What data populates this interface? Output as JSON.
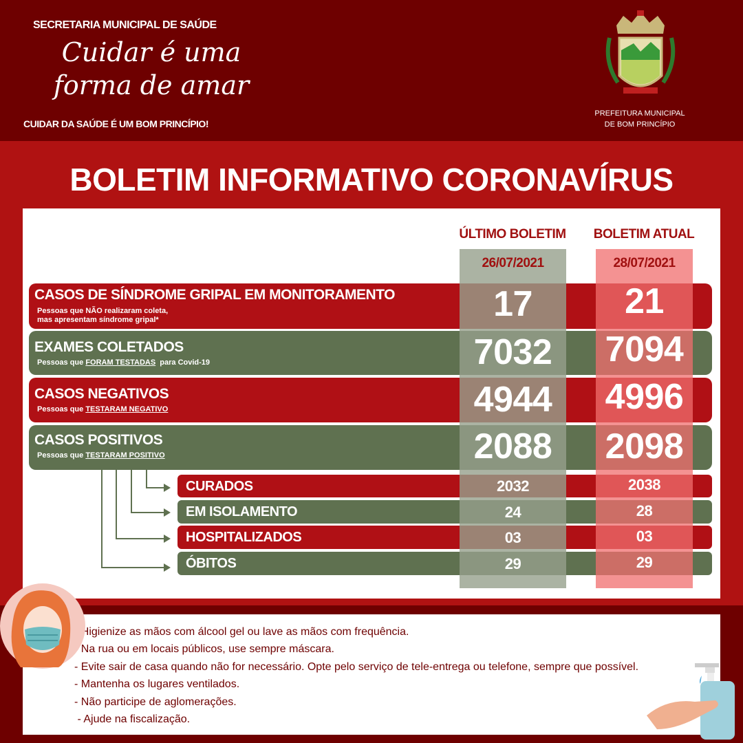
{
  "header": {
    "secretaria": "SECRETARIA MUNICIPAL DE SAÚDE",
    "slogan_line1": "Cuidar é uma",
    "slogan_line2": "forma de amar",
    "tagline": "CUIDAR DA SAÚDE É UM BOM PRINCÍPIO!",
    "prefeitura_line1": "PREFEITURA MUNICIPAL",
    "prefeitura_line2": "DE BOM PRINCÍPIO",
    "logo": "bom-principio-coat-of-arms"
  },
  "title": "BOLETIM INFORMATIVO CORONAVÍRUS",
  "columns": [
    {
      "label": "ÚLTIMO BOLETIM",
      "date": "26/07/2021"
    },
    {
      "label": "BOLETIM ATUAL",
      "date": "28/07/2021"
    }
  ],
  "rows": [
    {
      "title": "CASOS DE SÍNDROME GRIPAL EM MONITORAMENTO",
      "sub_prefix": "Pessoas que NÃO realizaram coleta,",
      "sub_emph": "",
      "sub_suffix": "mas apresentam síndrome gripal*",
      "last": "17",
      "current": "21"
    },
    {
      "title": "EXAMES COLETADOS",
      "sub_prefix": "Pessoas que ",
      "sub_emph": "FORAM TESTADAS",
      "sub_suffix": "  para Covid-19",
      "last": "7032",
      "current": "7094"
    },
    {
      "title": "CASOS NEGATIVOS",
      "sub_prefix": "Pessoas que ",
      "sub_emph": "TESTARAM NEGATIVO",
      "sub_suffix": "",
      "last": "4944",
      "current": "4996"
    },
    {
      "title": "CASOS POSITIVOS",
      "sub_prefix": "Pessoas que ",
      "sub_emph": "TESTARAM POSITIVO",
      "sub_suffix": "",
      "last": "2088",
      "current": "2098"
    }
  ],
  "subrows": [
    {
      "title": "CURADOS",
      "last": "2032",
      "current": "2038"
    },
    {
      "title": "EM ISOLAMENTO",
      "last": "24",
      "current": "28"
    },
    {
      "title": "HOSPITALIZADOS",
      "last": "03",
      "current": "03"
    },
    {
      "title": "ÓBITOS",
      "last": "29",
      "current": "29"
    }
  ],
  "tips": [
    "- Higienize as mãos com álcool gel ou lave as mãos com frequência.",
    "- Na rua ou em locais públicos, use sempre máscara.",
    "- Evite sair de casa quando não for necessário. Opte pelo serviço de tele-entrega ou telefone, sempre que possível.",
    "- Mantenha os lugares ventilados.",
    "- Não participe de aglomerações.",
    " - Ajude na fiscalização."
  ],
  "colors": {
    "dark_red": "#6e0000",
    "red": "#b01015",
    "green": "#5f7150",
    "pink": "#f08a8a",
    "gray": "#a9b09c"
  }
}
